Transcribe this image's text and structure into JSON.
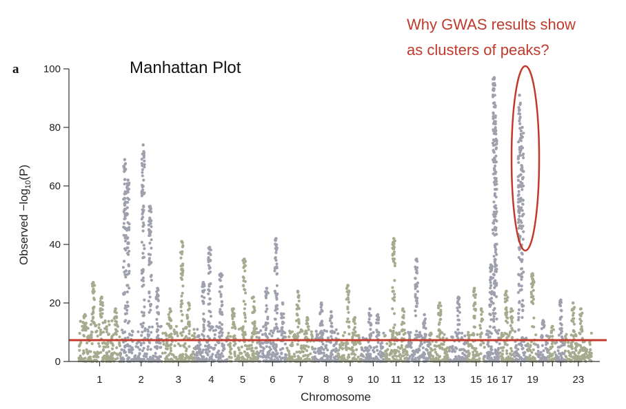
{
  "panel_letter": "a",
  "annotation": {
    "line1": "Why GWAS results show",
    "line2": "as clusters of peaks?",
    "color": "#c0392b"
  },
  "chart_data": {
    "type": "scatter",
    "title": "Manhattan Plot",
    "xlabel": "Chromosome",
    "ylabel_prefix": "Observed −log",
    "ylabel_sub": "10",
    "ylabel_suffix": "(P)",
    "ylim": [
      0,
      100
    ],
    "yticks": [
      0,
      20,
      40,
      60,
      80,
      100
    ],
    "chromosome_labels": [
      "1",
      "2",
      "3",
      "4",
      "5",
      "6",
      "7",
      "8",
      "9",
      "10",
      "11",
      "12",
      "13",
      "15",
      "16",
      "17",
      "19",
      "23"
    ],
    "significance_threshold": 7.3,
    "threshold_color": "#c0392b",
    "colors": {
      "odd": "#a6ab8f",
      "even": "#9ea1ad"
    },
    "chromosomes": [
      {
        "chr": 1,
        "label": "1",
        "bg": 14,
        "peaks": [
          [
            0.15,
            16
          ],
          [
            0.35,
            27
          ],
          [
            0.55,
            22
          ],
          [
            0.88,
            18
          ]
        ]
      },
      {
        "chr": 2,
        "label": "2",
        "bg": 13,
        "peaks": [
          [
            0.1,
            69
          ],
          [
            0.18,
            62
          ],
          [
            0.55,
            74
          ],
          [
            0.72,
            53
          ],
          [
            0.9,
            25
          ]
        ]
      },
      {
        "chr": 3,
        "label": "3",
        "bg": 13,
        "peaks": [
          [
            0.25,
            18
          ],
          [
            0.6,
            41
          ],
          [
            0.8,
            20
          ]
        ]
      },
      {
        "chr": 4,
        "label": "4",
        "bg": 12,
        "peaks": [
          [
            0.25,
            27
          ],
          [
            0.45,
            39
          ],
          [
            0.8,
            30
          ]
        ]
      },
      {
        "chr": 5,
        "label": "5",
        "bg": 12,
        "peaks": [
          [
            0.2,
            18
          ],
          [
            0.55,
            35
          ],
          [
            0.85,
            22
          ]
        ]
      },
      {
        "chr": 6,
        "label": "6",
        "bg": 12,
        "peaks": [
          [
            0.3,
            25
          ],
          [
            0.62,
            42
          ],
          [
            0.85,
            20
          ]
        ]
      },
      {
        "chr": 7,
        "label": "7",
        "bg": 11,
        "peaks": [
          [
            0.4,
            24
          ],
          [
            0.75,
            15
          ]
        ]
      },
      {
        "chr": 8,
        "label": "8",
        "bg": 11,
        "peaks": [
          [
            0.3,
            20
          ],
          [
            0.7,
            17
          ]
        ]
      },
      {
        "chr": 9,
        "label": "9",
        "bg": 10,
        "peaks": [
          [
            0.4,
            26
          ],
          [
            0.7,
            15
          ]
        ]
      },
      {
        "chr": 10,
        "label": "10",
        "bg": 10,
        "peaks": [
          [
            0.35,
            18
          ],
          [
            0.7,
            16
          ]
        ]
      },
      {
        "chr": 11,
        "label": "11",
        "bg": 11,
        "peaks": [
          [
            0.4,
            42
          ],
          [
            0.8,
            18
          ]
        ]
      },
      {
        "chr": 12,
        "label": "12",
        "bg": 10,
        "peaks": [
          [
            0.4,
            35
          ],
          [
            0.75,
            16
          ]
        ]
      },
      {
        "chr": 13,
        "label": "13",
        "bg": 10,
        "peaks": [
          [
            0.5,
            20
          ]
        ]
      },
      {
        "chr": 14,
        "label": "",
        "bg": 10,
        "peaks": [
          [
            0.5,
            22
          ]
        ]
      },
      {
        "chr": 15,
        "label": "15",
        "bg": 10,
        "peaks": [
          [
            0.4,
            25
          ],
          [
            0.8,
            18
          ]
        ]
      },
      {
        "chr": 16,
        "label": "16",
        "bg": 11,
        "peaks": [
          [
            0.4,
            33
          ],
          [
            0.62,
            97
          ],
          [
            0.7,
            82
          ]
        ]
      },
      {
        "chr": 17,
        "label": "17",
        "bg": 10,
        "peaks": [
          [
            0.45,
            24
          ],
          [
            0.8,
            18
          ]
        ]
      },
      {
        "chr": 18,
        "label": "",
        "bg": 11,
        "peaks": [
          [
            0.4,
            91
          ],
          [
            0.6,
            80
          ]
        ]
      },
      {
        "chr": 19,
        "label": "19",
        "bg": 10,
        "peaks": [
          [
            0.5,
            30
          ]
        ]
      },
      {
        "chr": 20,
        "label": "",
        "bg": 9,
        "peaks": [
          [
            0.5,
            14
          ]
        ]
      },
      {
        "chr": 21,
        "label": "",
        "bg": 9,
        "peaks": [
          [
            0.5,
            12
          ]
        ]
      },
      {
        "chr": 22,
        "label": "",
        "bg": 9,
        "peaks": [
          [
            0.5,
            21
          ]
        ]
      },
      {
        "chr": 23,
        "label": "23",
        "bg": 10,
        "peaks": [
          [
            0.3,
            20
          ],
          [
            0.6,
            18
          ]
        ]
      }
    ]
  }
}
